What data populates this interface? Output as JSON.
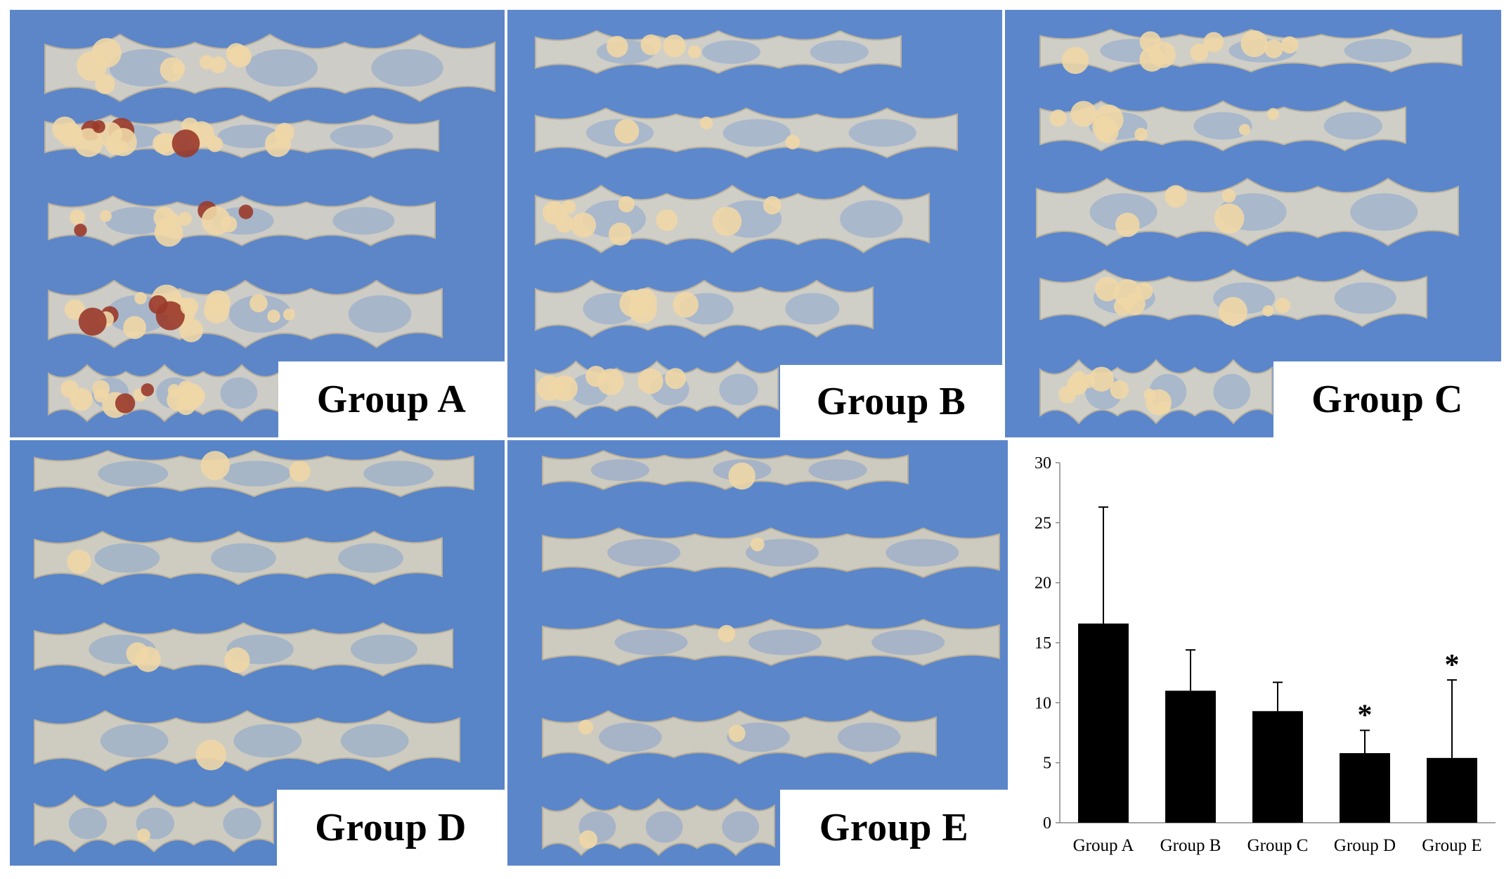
{
  "panels": [
    {
      "id": "A",
      "label": "Group A",
      "strips": 5,
      "bg": "#5d86c8",
      "tissue": "#e6dcc6",
      "lesions": "heavy"
    },
    {
      "id": "B",
      "label": "Group B",
      "strips": 5,
      "bg": "#5e88cc",
      "tissue": "#e8dec6",
      "lesions": "moderate"
    },
    {
      "id": "C",
      "label": "Group C",
      "strips": 5,
      "bg": "#5b86cb",
      "tissue": "#e9dfc6",
      "lesions": "moderate"
    },
    {
      "id": "D",
      "label": "Group D",
      "strips": 5,
      "bg": "#5884c8",
      "tissue": "#e8dcc0",
      "lesions": "few"
    },
    {
      "id": "E",
      "label": "Group E",
      "strips": 5,
      "bg": "#5b86ca",
      "tissue": "#e6d9bd",
      "lesions": "few"
    }
  ],
  "chart_data": {
    "type": "bar",
    "categories": [
      "Group A",
      "Group B",
      "Group C",
      "Group D",
      "Group E"
    ],
    "values": [
      16.6,
      11.0,
      9.3,
      5.8,
      5.4
    ],
    "error_upper": [
      26.3,
      14.4,
      11.7,
      7.7,
      11.9
    ],
    "significance": [
      "",
      "",
      "",
      "*",
      "*"
    ],
    "ylim": [
      0,
      30
    ],
    "yticks": [
      "0",
      "5",
      "10",
      "15",
      "20",
      "25",
      "30"
    ],
    "title": "",
    "xlabel": "",
    "ylabel": "",
    "bar_color": "#000000",
    "grid": false
  }
}
